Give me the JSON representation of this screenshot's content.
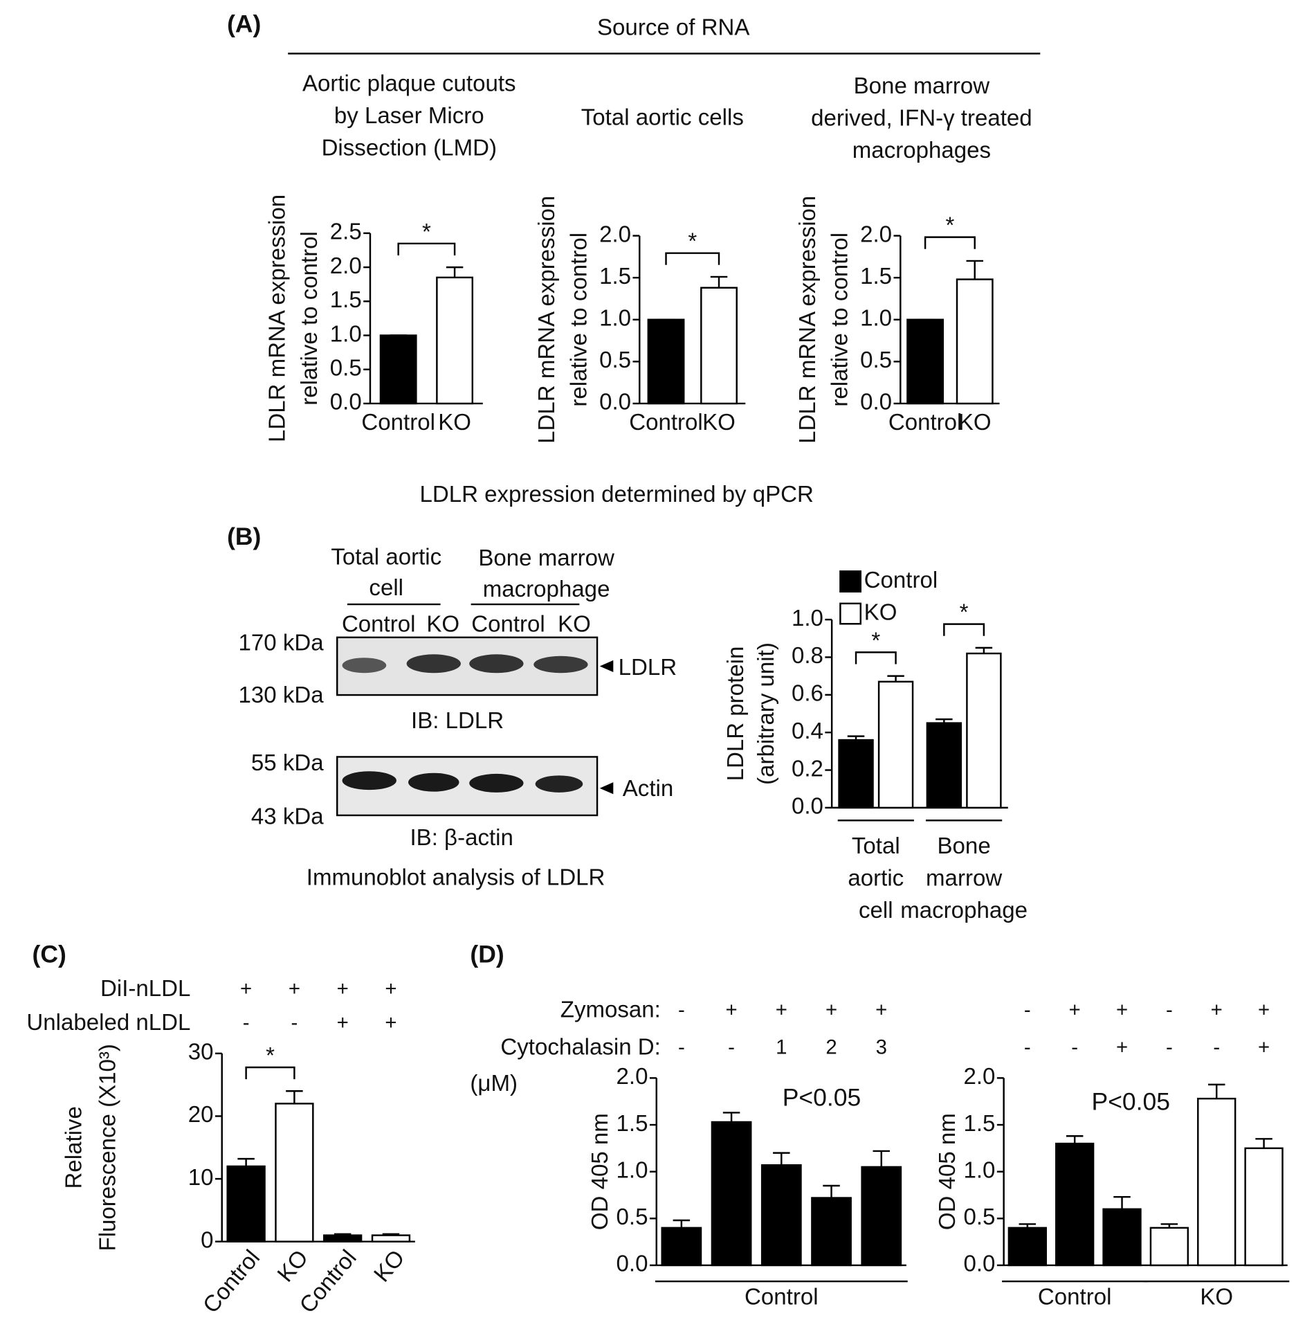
{
  "figure": {
    "panel_labels": [
      "(A)",
      "(B)",
      "(C)",
      "(D)"
    ],
    "source": "Source of RNA",
    "qpcr": "LDLR expression determined by qPCR",
    "blot": {
      "group1": [
        "Total aortic",
        "cell"
      ],
      "group2": [
        "Bone marrow",
        "macrophage"
      ],
      "lanes": [
        "Control",
        "KO",
        "Control",
        "KO"
      ],
      "markers_top": [
        "170 kDa",
        "130 kDa"
      ],
      "markers_bottom": [
        "55 kDa",
        "43 kDa"
      ],
      "target_top": "LDLR",
      "target_bottom": "Actin",
      "ib_top": "IB: LDLR",
      "ib_bottom": "IB: β-actin",
      "caption": "Immunoblot  analysis of LDLR"
    }
  },
  "chart_data": [
    {
      "type": "bar",
      "title": [
        "Aortic plaque cutouts",
        "by Laser Micro",
        "Dissection (LMD)"
      ],
      "ylabel": [
        "LDLR mRNA expression",
        "relative to control"
      ],
      "categories": [
        "Control",
        "KO"
      ],
      "values": [
        1.0,
        1.85
      ],
      "errors": [
        0,
        0.15
      ],
      "colors": [
        "#000000",
        "#ffffff"
      ],
      "ylim": [
        0,
        2.5
      ],
      "yticks": [
        {
          "value": 0,
          "label": "0.0"
        },
        0.5,
        {
          "value": 1,
          "label": "1.0"
        },
        1.5,
        {
          "value": 2,
          "label": "2.0"
        },
        2.5
      ],
      "significance": "*"
    },
    {
      "type": "bar",
      "title": [
        "Total aortic cells"
      ],
      "ylabel": [
        "LDLR mRNA expression",
        "relative to control"
      ],
      "categories": [
        "Control",
        "KO"
      ],
      "values": [
        1.0,
        1.38
      ],
      "errors": [
        0,
        0.13
      ],
      "colors": [
        "#000000",
        "#ffffff"
      ],
      "ylim": [
        0,
        2
      ],
      "yticks": [
        {
          "value": 0,
          "label": "0.0"
        },
        0.5,
        {
          "value": 1,
          "label": "1.0"
        },
        1.5,
        {
          "value": 2,
          "label": "2.0"
        }
      ],
      "significance": "*"
    },
    {
      "type": "bar",
      "title": [
        "Bone marrow",
        "derived, IFN-γ treated",
        "macrophages"
      ],
      "ylabel": [
        "LDLR mRNA expression",
        "relative to control"
      ],
      "categories": [
        "Control",
        "KO"
      ],
      "values": [
        1.0,
        1.48
      ],
      "errors": [
        0,
        0.22
      ],
      "colors": [
        "#000000",
        "#ffffff"
      ],
      "ylim": [
        0,
        2
      ],
      "yticks": [
        {
          "value": 0,
          "label": "0.0"
        },
        0.5,
        {
          "value": 1,
          "label": "1.0"
        },
        1.5,
        {
          "value": 2,
          "label": "2.0"
        }
      ],
      "significance": "*"
    },
    {
      "type": "grouped_bar",
      "ylabel": [
        "LDLR protein",
        "(arbitrary unit)"
      ],
      "categories": [
        [
          "Total",
          "aortic",
          "cell"
        ],
        [
          "Bone",
          "marrow",
          "macrophage"
        ]
      ],
      "series": [
        {
          "name": "Control",
          "color": "#000000",
          "values": [
            0.36,
            0.45
          ],
          "errors": [
            0.02,
            0.02
          ]
        },
        {
          "name": "KO",
          "color": "#ffffff",
          "values": [
            0.67,
            0.82
          ],
          "errors": [
            0.03,
            0.03
          ]
        }
      ],
      "ylim": [
        0,
        1
      ],
      "yticks": [
        {
          "value": 0,
          "label": "0.0"
        },
        0.2,
        0.4,
        0.6,
        0.8,
        {
          "value": 1,
          "label": "1.0"
        }
      ],
      "significance": [
        "*",
        "*"
      ]
    },
    {
      "type": "bar",
      "ylabel": [
        "Relative",
        "Fluorescence (X10³)"
      ],
      "categories": [
        "Control",
        "KO",
        "Control",
        "KO"
      ],
      "values": [
        12,
        22,
        1,
        1
      ],
      "errors": [
        1.2,
        2,
        0.2,
        0.2
      ],
      "colors": [
        "#000000",
        "#ffffff",
        "#000000",
        "#ffffff"
      ],
      "ylim": [
        0,
        30
      ],
      "yticks": [
        0,
        10,
        20,
        30
      ],
      "rows": [
        {
          "label": "DiI-nLDL",
          "marks": [
            "+",
            "+",
            "+",
            "+"
          ]
        },
        {
          "label": "Unlabeled nLDL",
          "marks": [
            "-",
            "-",
            "+",
            "+"
          ]
        }
      ],
      "significance": "*"
    },
    {
      "type": "bar",
      "ylabel": [
        "OD 405 nm"
      ],
      "values": [
        0.4,
        1.53,
        1.07,
        0.72,
        1.05
      ],
      "errors": [
        0.08,
        0.1,
        0.13,
        0.13,
        0.17
      ],
      "colors": [
        "#000000",
        "#000000",
        "#000000",
        "#000000",
        "#000000"
      ],
      "ylim": [
        0,
        2
      ],
      "yticks": [
        {
          "value": 0,
          "label": "0.0"
        },
        0.5,
        {
          "value": 1,
          "label": "1.0"
        },
        1.5,
        {
          "value": 2,
          "label": "2.0"
        }
      ],
      "rows": [
        {
          "label": "Zymosan:",
          "marks": [
            "-",
            "+",
            "+",
            "+",
            "+"
          ]
        },
        {
          "label": "Cytochalasin D:",
          "marks": [
            "-",
            "-",
            "1",
            "2",
            "3"
          ]
        }
      ],
      "unit": "(μM)",
      "annotation": "P<0.05",
      "groups": [
        "Control"
      ]
    },
    {
      "type": "bar",
      "ylabel": [
        "OD 405 nm"
      ],
      "values": [
        0.4,
        1.3,
        0.6,
        0.4,
        1.78,
        1.25
      ],
      "errors": [
        0.04,
        0.08,
        0.13,
        0.04,
        0.15,
        0.1
      ],
      "colors": [
        "#000000",
        "#000000",
        "#000000",
        "#ffffff",
        "#ffffff",
        "#ffffff"
      ],
      "ylim": [
        0,
        2
      ],
      "yticks": [
        {
          "value": 0,
          "label": "0.0"
        },
        0.5,
        {
          "value": 1,
          "label": "1.0"
        },
        1.5,
        {
          "value": 2,
          "label": "2.0"
        }
      ],
      "rows": [
        {
          "marks": [
            "-",
            "+",
            "+",
            "-",
            "+",
            "+"
          ]
        },
        {
          "marks": [
            "-",
            "-",
            "+",
            "-",
            "-",
            "+"
          ]
        }
      ],
      "annotation": "P<0.05",
      "groups": [
        "Control",
        "KO"
      ]
    }
  ]
}
